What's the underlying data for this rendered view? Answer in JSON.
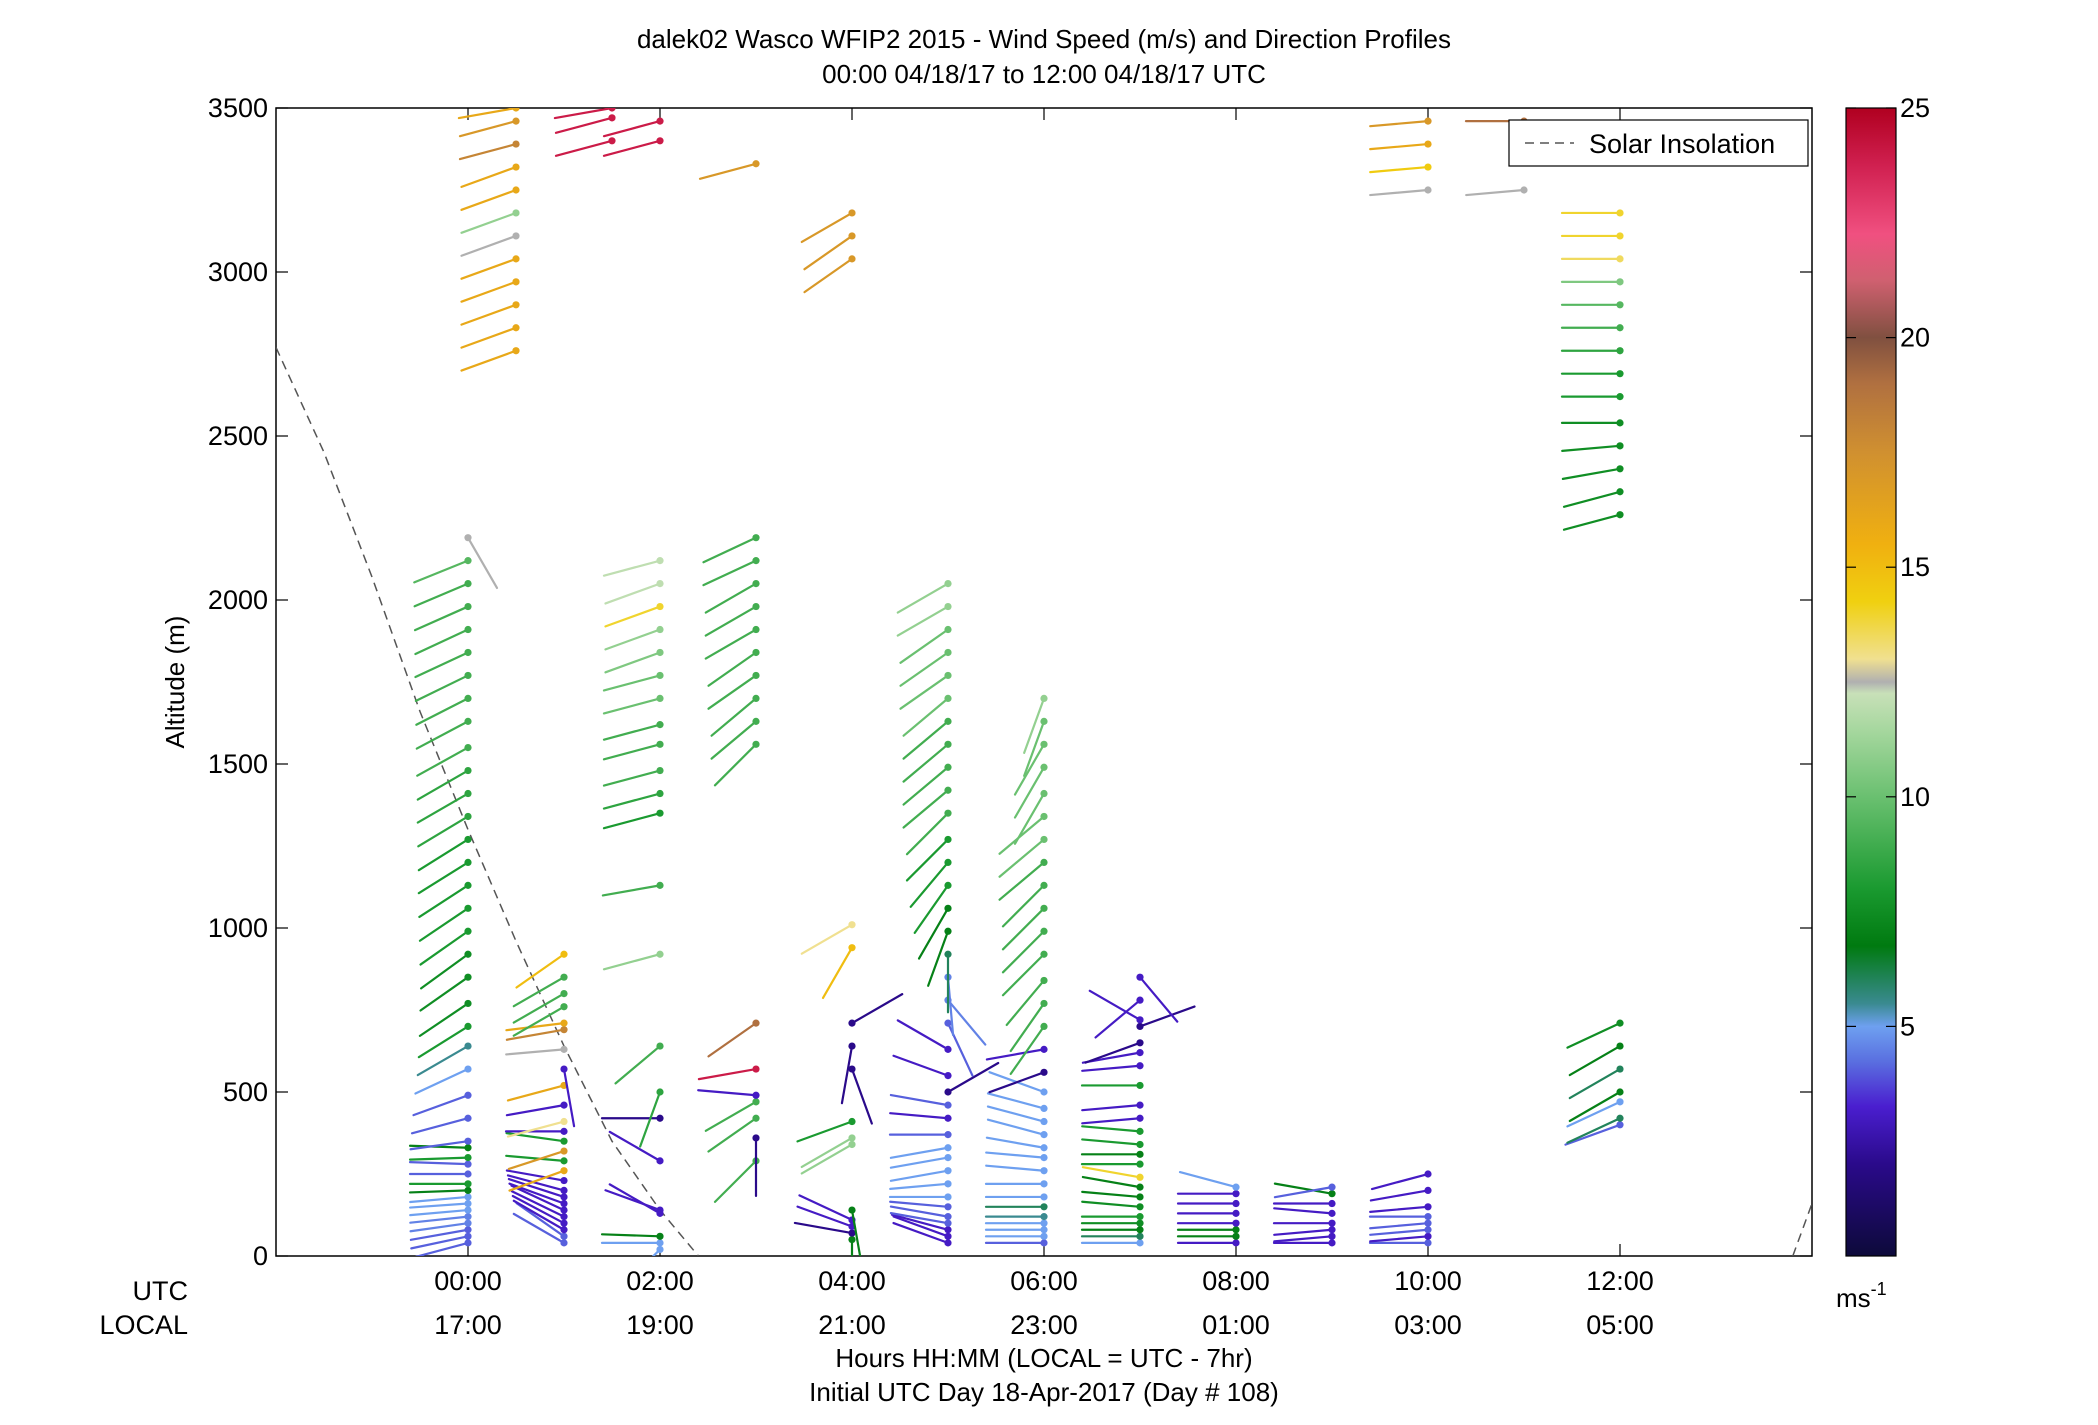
{
  "chart_data": {
    "type": "wind-barb-profile",
    "title": "dalek02 Wasco WFIP2 2015 - Wind Speed (m/s) and Direction Profiles",
    "subtitle": "00:00 04/18/17 to 12:00 04/18/17  UTC",
    "ylabel": "Altitude (m)",
    "xlabel": "Hours HH:MM  (LOCAL = UTC - 7hr)",
    "xlabel2": "Initial UTC Day 18-Apr-2017 (Day # 108)",
    "ylim": [
      0,
      3500
    ],
    "yticks": [
      0,
      500,
      1000,
      1500,
      2000,
      2500,
      3000,
      3500
    ],
    "xlim": [
      -2,
      14
    ],
    "x_row_label_utc": "UTC",
    "x_row_label_local": "LOCAL",
    "xticks": [
      {
        "h": 0,
        "utc": "00:00",
        "local": "17:00"
      },
      {
        "h": 2,
        "utc": "02:00",
        "local": "19:00"
      },
      {
        "h": 4,
        "utc": "04:00",
        "local": "21:00"
      },
      {
        "h": 6,
        "utc": "06:00",
        "local": "23:00"
      },
      {
        "h": 8,
        "utc": "08:00",
        "local": "01:00"
      },
      {
        "h": 10,
        "utc": "10:00",
        "local": "03:00"
      },
      {
        "h": 12,
        "utc": "12:00",
        "local": "05:00"
      }
    ],
    "legend": {
      "label": "Solar Insolation",
      "position": "top-right"
    },
    "colorbar": {
      "min": 0,
      "max": 25,
      "ticks": [
        5,
        10,
        15,
        20,
        25
      ],
      "unit": "ms",
      "unit_exponent": "-1"
    },
    "solar_insolation": [
      [
        -2,
        2770
      ],
      [
        -1.5,
        2450
      ],
      [
        -1,
        2070
      ],
      [
        -0.5,
        1660
      ],
      [
        0,
        1300
      ],
      [
        0.5,
        960
      ],
      [
        1,
        640
      ],
      [
        1.5,
        350
      ],
      [
        2,
        140
      ],
      [
        2.4,
        0
      ],
      [
        13.8,
        0
      ],
      [
        14,
        160
      ]
    ],
    "profiles": [
      {
        "time": 0,
        "altitude": [
          40,
          60,
          80,
          100,
          120,
          140,
          160,
          180,
          200,
          220,
          250,
          280,
          300,
          330,
          350,
          420,
          490,
          570,
          640,
          700,
          770,
          850,
          920,
          990,
          1060,
          1130,
          1200,
          1270,
          1340,
          1410,
          1480,
          1550,
          1630,
          1700,
          1770,
          1840,
          1910,
          1980,
          2050,
          2120,
          2190
        ],
        "speed": [
          4,
          4,
          4,
          4.5,
          4.5,
          5,
          5,
          5,
          7,
          8,
          4,
          4,
          8,
          7,
          4,
          4,
          4,
          5,
          5.5,
          8,
          7.5,
          7.5,
          7.5,
          8,
          8,
          8,
          8,
          8,
          8.5,
          8.5,
          8.5,
          9,
          9,
          9,
          9,
          9,
          9,
          9,
          9,
          9.5,
          12.5
        ],
        "dir": [
          255,
          258,
          260,
          262,
          264,
          265,
          266,
          265,
          268,
          270,
          270,
          272,
          268,
          272,
          262,
          255,
          250,
          245,
          240,
          238,
          236,
          235,
          234,
          235,
          236,
          237,
          238,
          238,
          239,
          240,
          240,
          241,
          242,
          243,
          244,
          245,
          245,
          246,
          247,
          248,
          150
        ]
      },
      {
        "time": 1,
        "altitude": [
          40,
          60,
          80,
          100,
          120,
          140,
          160,
          180,
          200,
          230,
          260,
          290,
          320,
          350,
          380,
          410,
          460,
          520,
          570,
          630,
          690,
          710,
          760,
          800,
          850,
          920
        ],
        "speed": [
          4,
          4,
          3,
          3,
          3,
          3,
          3,
          3,
          3,
          3,
          16,
          8,
          17,
          8,
          3,
          13,
          3,
          16,
          3,
          12.5,
          18,
          16,
          9,
          9,
          9,
          15
        ],
        "dir": [
          300,
          305,
          300,
          298,
          296,
          295,
          290,
          288,
          285,
          280,
          250,
          275,
          252,
          278,
          270,
          255,
          260,
          255,
          170,
          265,
          260,
          263,
          240,
          240,
          240,
          235
        ]
      },
      {
        "time": 2,
        "altitude": [
          20,
          40,
          60,
          130,
          140,
          290,
          420,
          500,
          640,
          920,
          1130,
          1350,
          1410,
          1480,
          1560,
          1620,
          1700,
          1770,
          1840,
          1910,
          1980,
          2050,
          2120,
          3400,
          3460
        ],
        "speed": [
          5,
          5,
          7,
          3,
          3,
          3,
          2,
          8.5,
          9,
          11,
          9,
          8,
          8.5,
          9,
          9,
          9,
          10,
          10,
          10.5,
          11,
          14,
          12,
          12,
          24,
          24
        ],
        "dir": [
          225,
          270,
          272,
          300,
          290,
          300,
          270,
          200,
          230,
          255,
          260,
          255,
          255,
          255,
          255,
          255,
          255,
          255,
          250,
          250,
          250,
          250,
          255,
          255,
          255
        ]
      },
      {
        "time": 3,
        "altitude": [
          290,
          360,
          420,
          470,
          490,
          570,
          710,
          1560,
          1630,
          1700,
          1770,
          1840,
          1910,
          1980,
          2050,
          2120,
          2190,
          3330
        ],
        "speed": [
          9,
          2,
          9,
          9,
          3,
          24,
          19,
          9,
          9,
          9,
          9,
          9,
          9,
          9,
          9,
          9,
          9,
          17
        ],
        "dir": [
          225,
          180,
          235,
          240,
          275,
          260,
          235,
          225,
          230,
          230,
          235,
          235,
          240,
          240,
          240,
          245,
          245,
          255
        ]
      },
      {
        "time": 4,
        "altitude": [
          50,
          70,
          90,
          110,
          140,
          340,
          360,
          410,
          570,
          640,
          710,
          940,
          1010,
          3040,
          3110,
          3180
        ],
        "speed": [
          7,
          2,
          3,
          3,
          7,
          11,
          11,
          8,
          2,
          2,
          2,
          15,
          13,
          17,
          17,
          17
        ],
        "dir": [
          180,
          280,
          290,
          295,
          170,
          240,
          240,
          250,
          160,
          190,
          60,
          210,
          240,
          235,
          235,
          240
        ]
      },
      {
        "time": 5,
        "altitude": [
          40,
          60,
          80,
          100,
          120,
          150,
          180,
          220,
          260,
          300,
          330,
          370,
          420,
          460,
          500,
          550,
          630,
          710,
          780,
          850,
          920,
          990,
          1060,
          1130,
          1200,
          1270,
          1350,
          1420,
          1490,
          1560,
          1630,
          1700,
          1770,
          1840,
          1910,
          1980,
          2050
        ],
        "speed": [
          3,
          3,
          3,
          4,
          4,
          4,
          5,
          5,
          5,
          5,
          5,
          4,
          3,
          4,
          2,
          3,
          3,
          4,
          4.5,
          4.5,
          6,
          7,
          7,
          8,
          8,
          8,
          9,
          9,
          9,
          9,
          9,
          10,
          10,
          10,
          10,
          11,
          11
        ],
        "dir": [
          290,
          290,
          285,
          280,
          280,
          275,
          270,
          265,
          260,
          260,
          260,
          270,
          275,
          280,
          60,
          290,
          300,
          155,
          140,
          175,
          180,
          200,
          210,
          215,
          220,
          225,
          225,
          230,
          230,
          230,
          230,
          230,
          235,
          235,
          235,
          240,
          240
        ]
      },
      {
        "time": 6,
        "altitude": [
          40,
          60,
          80,
          100,
          120,
          150,
          180,
          220,
          260,
          300,
          330,
          370,
          410,
          450,
          500,
          560,
          630,
          700,
          770,
          840,
          920,
          990,
          1060,
          1130,
          1200,
          1270,
          1340,
          1410,
          1490,
          1560,
          1630,
          1700
        ],
        "speed": [
          4,
          5,
          5,
          5,
          5.5,
          6,
          5,
          5,
          5,
          5,
          5,
          5,
          5,
          5,
          5,
          2,
          3,
          9,
          9,
          9,
          9,
          9,
          9,
          9,
          9,
          10,
          10,
          10,
          10,
          10,
          10,
          11
        ],
        "dir": [
          270,
          270,
          270,
          270,
          270,
          270,
          270,
          270,
          275,
          275,
          280,
          285,
          285,
          285,
          290,
          250,
          260,
          215,
          215,
          220,
          225,
          225,
          225,
          225,
          230,
          230,
          230,
          210,
          210,
          210,
          200,
          200
        ]
      },
      {
        "time": 7,
        "altitude": [
          40,
          60,
          80,
          100,
          120,
          150,
          180,
          210,
          240,
          280,
          310,
          340,
          380,
          420,
          460,
          520,
          580,
          620,
          650,
          700,
          720,
          780,
          850
        ],
        "speed": [
          5,
          6,
          7,
          7.5,
          8,
          7.5,
          7,
          7,
          14,
          8,
          7,
          8,
          8,
          3,
          3,
          8,
          3,
          3,
          2,
          2,
          3,
          3,
          3
        ],
        "dir": [
          270,
          270,
          270,
          270,
          270,
          275,
          275,
          280,
          280,
          270,
          270,
          275,
          275,
          265,
          265,
          270,
          265,
          260,
          250,
          70,
          300,
          230,
          140
        ]
      },
      {
        "time": 8,
        "altitude": [
          40,
          60,
          80,
          100,
          130,
          160,
          190,
          210
        ],
        "speed": [
          3,
          7,
          7,
          3,
          3,
          3,
          3,
          5
        ],
        "dir": [
          270,
          270,
          270,
          270,
          270,
          270,
          270,
          285
        ]
      },
      {
        "time": 9,
        "altitude": [
          40,
          60,
          80,
          100,
          130,
          160,
          190,
          210
        ],
        "speed": [
          3,
          3,
          3,
          3,
          3,
          3,
          7,
          4
        ],
        "dir": [
          270,
          265,
          265,
          270,
          275,
          270,
          280,
          260
        ]
      },
      {
        "time": 10,
        "altitude": [
          40,
          60,
          80,
          100,
          120,
          150,
          200,
          250,
          3250,
          3320,
          3390,
          3460
        ],
        "speed": [
          4,
          3,
          4,
          4,
          4,
          3,
          3,
          3,
          12.5,
          14.5,
          16,
          17
        ],
        "dir": [
          270,
          265,
          265,
          265,
          270,
          265,
          260,
          255,
          265,
          265,
          265,
          265
        ]
      },
      {
        "time": 11,
        "altitude": [
          3250,
          3460
        ],
        "speed": [
          12.5,
          19
        ],
        "dir": [
          265,
          270
        ]
      },
      {
        "time": 12,
        "altitude": [
          400,
          420,
          470,
          500,
          570,
          640,
          710,
          2260,
          2330,
          2400,
          2470,
          2540,
          2620,
          2690,
          2760,
          2830,
          2900,
          2970,
          3040,
          3110,
          3180
        ],
        "speed": [
          4,
          6,
          5,
          7,
          6,
          7,
          7.5,
          7.5,
          7.5,
          7.5,
          7.5,
          7.5,
          8,
          8,
          8.5,
          9,
          9.5,
          10.5,
          13.5,
          14,
          14
        ],
        "dir": [
          250,
          245,
          245,
          240,
          240,
          240,
          245,
          255,
          255,
          260,
          265,
          270,
          270,
          270,
          270,
          270,
          270,
          270,
          270,
          270,
          270
        ]
      },
      {
        "time": 0.5,
        "altitude": [
          2760,
          2830,
          2900,
          2970,
          3040,
          3110,
          3180,
          3250,
          3320,
          3390,
          3460,
          3500
        ],
        "speed": [
          16,
          16,
          16,
          16,
          16,
          12.5,
          11,
          16,
          16,
          18,
          17,
          16
        ],
        "dir": [
          250,
          250,
          250,
          250,
          250,
          250,
          250,
          250,
          250,
          255,
          255,
          260
        ]
      },
      {
        "time": 1.5,
        "altitude": [
          3400,
          3470,
          3500
        ],
        "speed": [
          24,
          24,
          24
        ],
        "dir": [
          255,
          255,
          260
        ]
      }
    ]
  }
}
